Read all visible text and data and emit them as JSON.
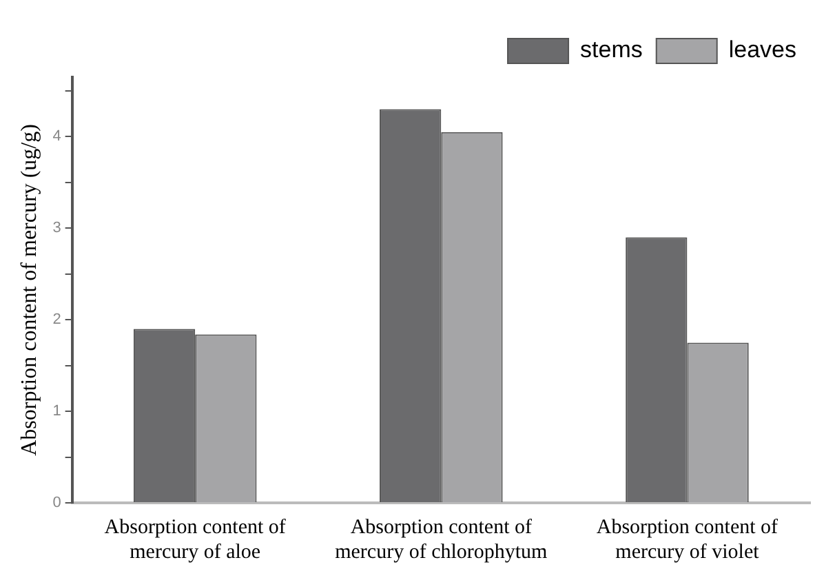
{
  "chart_data": {
    "type": "bar",
    "ylabel": "Absorption content of mercury (ug/g)",
    "categories": [
      "Absorption content of mercury of aloe",
      "Absorption content of mercury of chlorophytum",
      "Absorption content of mercury of violet"
    ],
    "series": [
      {
        "name": "stems",
        "color": "#6b6b6d",
        "values": [
          1.9,
          4.3,
          2.9
        ]
      },
      {
        "name": "leaves",
        "color": "#a5a5a7",
        "values": [
          1.84,
          4.05,
          1.75
        ]
      }
    ],
    "ylim": [
      0,
      4.65
    ],
    "yticks": [
      0,
      {
        "value": 0.5,
        "label": null
      },
      1,
      {
        "value": 1.5,
        "label": null
      },
      2,
      {
        "value": 2.5,
        "label": null
      },
      3,
      {
        "value": 3.5,
        "label": null
      },
      4,
      {
        "value": 4.5,
        "label": null
      }
    ],
    "grid": false,
    "legend": "top right"
  }
}
